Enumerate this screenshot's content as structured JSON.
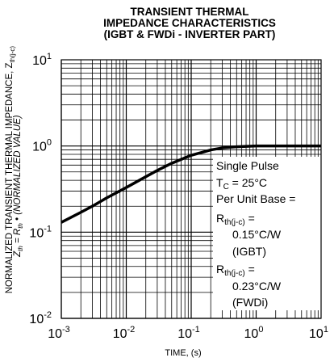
{
  "chart_data": {
    "type": "line",
    "title_lines": [
      "TRANSIENT THERMAL",
      "IMPEDANCE CHARACTERISTICS",
      "(IGBT & FWDi - INVERTER PART)"
    ],
    "xlabel": "TIME, (s)",
    "ylabel_line1": "NORMALIZED TRANSIENT THERMAL IMPEDANCE, Z",
    "ylabel_line1_sub": "th(j-c)",
    "ylabel_line2_a": "Z",
    "ylabel_line2_a_sub": "th",
    "ylabel_line2_b": " = R",
    "ylabel_line2_b_sub": "th",
    "ylabel_line2_c": " • (NORMALIZED VALUE)",
    "x_scale": "log",
    "y_scale": "log",
    "xlim": [
      0.001,
      10
    ],
    "ylim": [
      0.01,
      10
    ],
    "x_ticks": [
      "10-3",
      "10-2",
      "10-1",
      "100",
      "101"
    ],
    "y_ticks": [
      "10-2",
      "10-1",
      "100",
      "101"
    ],
    "grid": true,
    "series": [
      {
        "x": [
          0.001,
          0.002,
          0.003,
          0.005,
          0.01,
          0.02,
          0.03,
          0.05,
          0.1,
          0.2,
          0.3,
          0.5,
          1,
          2,
          5,
          10
        ],
        "y": [
          0.13,
          0.17,
          0.2,
          0.25,
          0.33,
          0.44,
          0.52,
          0.63,
          0.78,
          0.9,
          0.95,
          0.98,
          1.0,
          1.0,
          1.0,
          1.0
        ]
      }
    ],
    "annotation": {
      "line1": "Single Pulse",
      "line2_a": "T",
      "line2_sub": "C",
      "line2_b": " = 25°C",
      "line3": "Per Unit Base =",
      "line4_a": "R",
      "line4_sub": "th(j-c)",
      "line4_b": " =",
      "line5": "0.15°C/W",
      "line6": "(IGBT)",
      "line7_a": "R",
      "line7_sub": "th(j-c)",
      "line7_b": " =",
      "line8": "0.23°C/W",
      "line9": "(FWDi)"
    },
    "colors": {
      "line": "#000000",
      "grid": "#000000",
      "background": "#ffffff"
    }
  }
}
